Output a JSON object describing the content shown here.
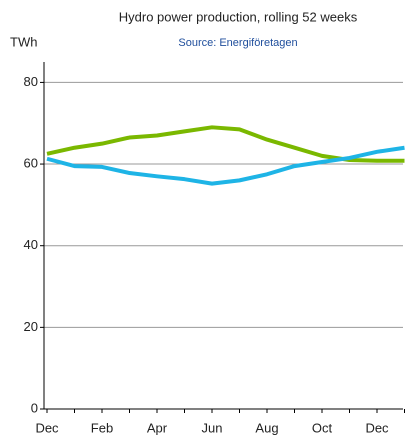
{
  "chart_data": {
    "type": "line",
    "title": "Hydro power production, rolling 52 weeks",
    "subtitle": "Source: Energiföretagen",
    "y_label": "TWh",
    "categories": [
      "Dec",
      null,
      "Feb",
      null,
      "Apr",
      null,
      "Jun",
      null,
      "Aug",
      null,
      "Oct",
      null,
      "Dec",
      null
    ],
    "series": [
      {
        "color": "#7ab800",
        "values": [
          62.5,
          64,
          65,
          66.5,
          67,
          68,
          69,
          68.5,
          66,
          64,
          62,
          61,
          60.8,
          60.8
        ]
      },
      {
        "color": "#1eb4e6",
        "values": [
          61.3,
          59.5,
          59.3,
          57.8,
          57,
          56.3,
          55.2,
          56,
          57.5,
          59.5,
          60.5,
          61.5,
          63,
          64
        ]
      }
    ],
    "ylim": [
      0,
      85
    ],
    "yticks": [
      0,
      20,
      40,
      60,
      80
    ],
    "grid": true
  }
}
